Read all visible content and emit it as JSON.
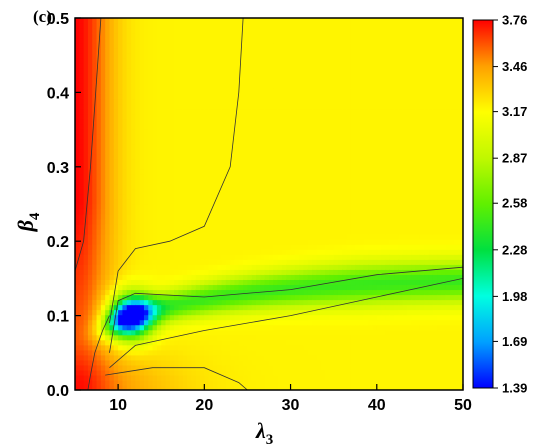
{
  "chart_data": {
    "type": "heatmap",
    "panel_label": "(c)",
    "xlabel": {
      "symbol": "λ",
      "sub": "3"
    },
    "ylabel": {
      "symbol": "β",
      "sub": "4"
    },
    "xlim": [
      5,
      50
    ],
    "ylim": [
      0,
      0.5
    ],
    "xticks": [
      10,
      20,
      30,
      40,
      50
    ],
    "xtick_labels": [
      "10",
      "20",
      "30",
      "40",
      "50"
    ],
    "yticks": [
      0.0,
      0.1,
      0.2,
      0.3,
      0.4,
      0.5
    ],
    "ytick_labels": [
      "0.0",
      "0.1",
      "0.2",
      "0.3",
      "0.4",
      "0.5"
    ],
    "colorbar": {
      "ticks": [
        1.39,
        1.69,
        1.98,
        2.28,
        2.58,
        2.87,
        3.17,
        3.46,
        3.76
      ],
      "tick_labels": [
        "1.39",
        "1.69",
        "1.98",
        "2.28",
        "2.58",
        "2.87",
        "3.17",
        "3.46",
        "3.76"
      ],
      "colors": [
        "#0000ff",
        "#00a0ff",
        "#00ffe0",
        "#00e040",
        "#60f000",
        "#c0f800",
        "#ffff00",
        "#ffa000",
        "#ff0000"
      ]
    },
    "color_levels": {
      "max_left": 3.76,
      "plateau": 3.2,
      "min_trough": 1.39
    },
    "features": [
      {
        "name": "high-value band near small lambda",
        "lambda_approx": [
          5,
          10
        ],
        "beta_range": [
          0.0,
          0.5
        ],
        "value_approx": 3.6
      },
      {
        "name": "low-value trough",
        "lambda_approx": [
          9,
          15
        ],
        "beta_approx": [
          0.07,
          0.13
        ],
        "value_min": 1.39
      },
      {
        "name": "green valley",
        "lambda_range": [
          12,
          50
        ],
        "beta_range": [
          0.09,
          0.16
        ],
        "value_approx": 2.5
      }
    ]
  }
}
